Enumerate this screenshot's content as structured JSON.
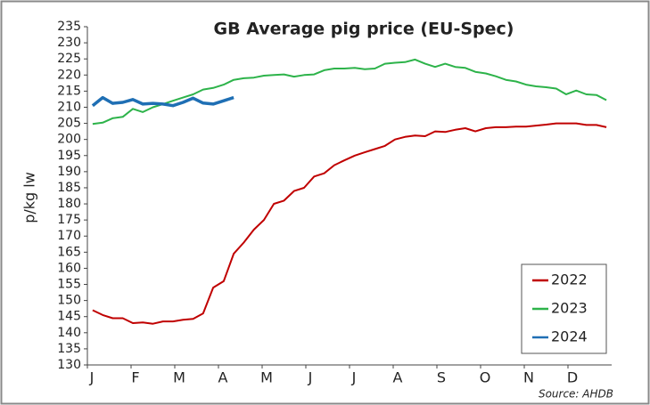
{
  "chart_data": {
    "type": "line",
    "title": "GB Average pig price (EU-Spec)",
    "y_label": "p/kg lw",
    "source": "Source: AHDB",
    "xlim": [
      0,
      12
    ],
    "xticks": [
      {
        "value": 0,
        "label": "J"
      },
      {
        "value": 1,
        "label": "F"
      },
      {
        "value": 2,
        "label": "M"
      },
      {
        "value": 3,
        "label": "A"
      },
      {
        "value": 4,
        "label": "M"
      },
      {
        "value": 5,
        "label": "J"
      },
      {
        "value": 6,
        "label": "J"
      },
      {
        "value": 7,
        "label": "A"
      },
      {
        "value": 8,
        "label": "S"
      },
      {
        "value": 9,
        "label": "O"
      },
      {
        "value": 10,
        "label": "N"
      },
      {
        "value": 11,
        "label": "D"
      }
    ],
    "ylim": [
      130,
      235
    ],
    "yticks": [
      130,
      135,
      140,
      145,
      150,
      155,
      160,
      165,
      170,
      175,
      180,
      185,
      190,
      195,
      200,
      205,
      210,
      215,
      220,
      225,
      230,
      235
    ],
    "legend": "lower right",
    "series": [
      {
        "name": "2022",
        "color": "#c00000",
        "x": [
          0.12,
          0.35,
          0.58,
          0.81,
          1.04,
          1.27,
          1.5,
          1.73,
          1.96,
          2.19,
          2.42,
          2.65,
          2.88,
          3.12,
          3.35,
          3.58,
          3.81,
          4.04,
          4.27,
          4.5,
          4.73,
          4.96,
          5.19,
          5.42,
          5.65,
          5.88,
          6.12,
          6.35,
          6.58,
          6.81,
          7.04,
          7.27,
          7.5,
          7.73,
          7.96,
          8.19,
          8.42,
          8.65,
          8.88,
          9.12,
          9.35,
          9.58,
          9.81,
          10.04,
          10.27,
          10.5,
          10.73,
          10.96,
          11.19,
          11.42,
          11.65,
          11.88
        ],
        "values": [
          147,
          145.5,
          144.5,
          144.5,
          143,
          143.2,
          142.8,
          143.5,
          143.5,
          144,
          144.3,
          146,
          154,
          156,
          164.5,
          168,
          172,
          175,
          180,
          181,
          184,
          185,
          188.5,
          189.5,
          192,
          193.5,
          195,
          196,
          197,
          198,
          200,
          200.8,
          201.2,
          201,
          202.5,
          202.3,
          203,
          203.5,
          202.5,
          203.5,
          203.8,
          203.8,
          204,
          204,
          204.3,
          204.6,
          205,
          205,
          205,
          204.5,
          204.5,
          203.8
        ]
      },
      {
        "name": "2023",
        "color": "#2db34a",
        "x": [
          0.12,
          0.35,
          0.58,
          0.81,
          1.04,
          1.27,
          1.5,
          1.73,
          1.96,
          2.19,
          2.42,
          2.65,
          2.88,
          3.12,
          3.35,
          3.58,
          3.81,
          4.04,
          4.27,
          4.5,
          4.73,
          4.96,
          5.19,
          5.42,
          5.65,
          5.88,
          6.12,
          6.35,
          6.58,
          6.81,
          7.04,
          7.27,
          7.5,
          7.73,
          7.96,
          8.19,
          8.42,
          8.65,
          8.88,
          9.12,
          9.35,
          9.58,
          9.81,
          10.04,
          10.27,
          10.5,
          10.73,
          10.96,
          11.19,
          11.42,
          11.65,
          11.88
        ],
        "values": [
          204.8,
          205.2,
          206.6,
          207,
          209.5,
          208.5,
          210,
          211,
          212,
          213,
          214,
          215.5,
          216,
          217,
          218.5,
          219,
          219.2,
          219.8,
          220,
          220.2,
          219.5,
          220,
          220.2,
          221.5,
          222,
          222,
          222.2,
          221.8,
          222,
          223.5,
          223.8,
          224,
          224.8,
          223.5,
          222.5,
          223.5,
          222.5,
          222.2,
          221,
          220.5,
          219.6,
          218.5,
          218,
          217,
          216.5,
          216.2,
          215.8,
          214,
          215.2,
          214,
          213.8,
          212.2
        ]
      },
      {
        "name": "2024",
        "color": "#1f6fb4",
        "x": [
          0.12,
          0.35,
          0.58,
          0.81,
          1.04,
          1.27,
          1.5,
          1.73,
          1.96,
          2.19,
          2.42,
          2.65,
          2.88,
          3.12,
          3.35
        ],
        "values": [
          210.5,
          213,
          211.2,
          211.5,
          212.4,
          211,
          211.2,
          211,
          210.5,
          211.5,
          212.8,
          211.3,
          211,
          212,
          213
        ]
      }
    ]
  }
}
